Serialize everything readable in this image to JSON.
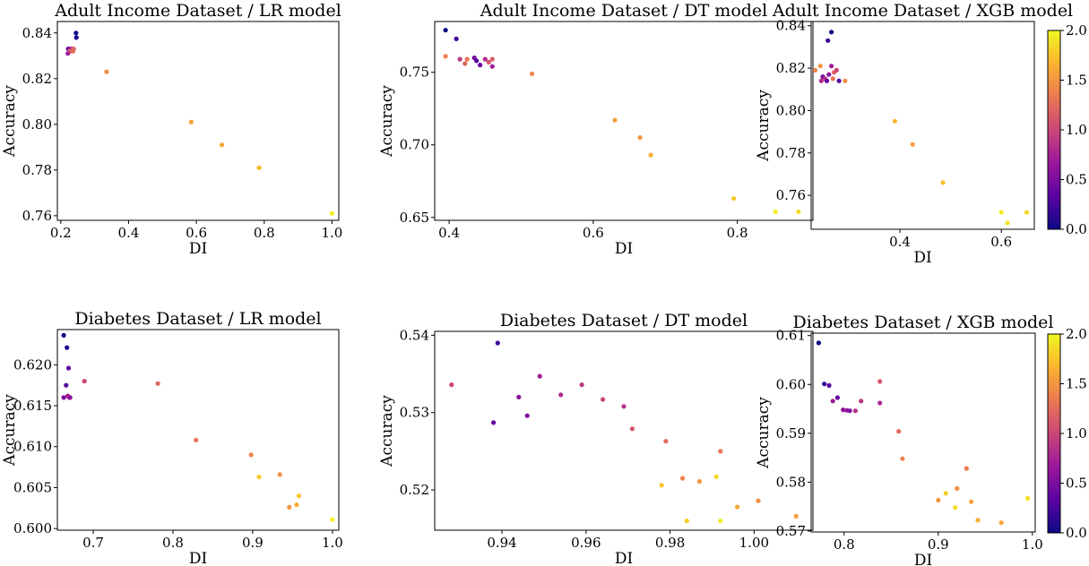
{
  "colormap": {
    "name": "plasma",
    "min": 0.0,
    "max": 2.0,
    "stops": [
      "#0d0887",
      "#5b02a3",
      "#9a179b",
      "#cb4678",
      "#eb7852",
      "#fbb32f",
      "#eff821"
    ],
    "tick_labels": [
      "0.0",
      "0.5",
      "1.0",
      "1.5",
      "2.0"
    ],
    "tick_values": [
      0.0,
      0.5,
      1.0,
      1.5,
      2.0
    ]
  },
  "chart_data": [
    {
      "type": "scatter",
      "title": "Adult Income Dataset / LR model",
      "xlabel": "DI",
      "ylabel": "Accuracy",
      "xlim": [
        0.19,
        1.02
      ],
      "ylim": [
        0.758,
        0.845
      ],
      "xticks": [
        0.2,
        0.4,
        0.6,
        0.8,
        1.0
      ],
      "xtick_labels": [
        "0.2",
        "0.4",
        "0.6",
        "0.8",
        "1.0"
      ],
      "yticks": [
        0.76,
        0.78,
        0.8,
        0.82,
        0.84
      ],
      "ytick_labels": [
        "0.76",
        "0.78",
        "0.80",
        "0.82",
        "0.84"
      ],
      "colorbar": false,
      "points": [
        {
          "x": 0.245,
          "y": 0.84,
          "c": 0.0
        },
        {
          "x": 0.246,
          "y": 0.838,
          "c": 0.05
        },
        {
          "x": 0.222,
          "y": 0.833,
          "c": 0.4
        },
        {
          "x": 0.228,
          "y": 0.833,
          "c": 0.6
        },
        {
          "x": 0.234,
          "y": 0.833,
          "c": 0.9
        },
        {
          "x": 0.238,
          "y": 0.833,
          "c": 1.2
        },
        {
          "x": 0.226,
          "y": 0.832,
          "c": 1.3
        },
        {
          "x": 0.232,
          "y": 0.832,
          "c": 1.1
        },
        {
          "x": 0.221,
          "y": 0.831,
          "c": 0.7
        },
        {
          "x": 0.236,
          "y": 0.832,
          "c": 1.25
        },
        {
          "x": 0.335,
          "y": 0.823,
          "c": 1.45
        },
        {
          "x": 0.585,
          "y": 0.801,
          "c": 1.55
        },
        {
          "x": 0.675,
          "y": 0.791,
          "c": 1.6
        },
        {
          "x": 0.785,
          "y": 0.781,
          "c": 1.7
        },
        {
          "x": 1.0,
          "y": 0.761,
          "c": 1.95
        }
      ]
    },
    {
      "type": "scatter",
      "title": "Adult Income Dataset / DT model",
      "xlabel": "DI",
      "ylabel": "Accuracy",
      "xlim": [
        0.38,
        0.905
      ],
      "ylim": [
        0.648,
        0.785
      ],
      "xticks": [
        0.4,
        0.6,
        0.8
      ],
      "xtick_labels": [
        "0.4",
        "0.6",
        "0.8"
      ],
      "yticks": [
        0.65,
        0.7,
        0.75
      ],
      "ytick_labels": [
        "0.65",
        "0.70",
        "0.75"
      ],
      "colorbar": false,
      "points": [
        {
          "x": 0.395,
          "y": 0.779,
          "c": 0.0
        },
        {
          "x": 0.41,
          "y": 0.773,
          "c": 0.2
        },
        {
          "x": 0.395,
          "y": 0.761,
          "c": 1.4
        },
        {
          "x": 0.415,
          "y": 0.759,
          "c": 0.9
        },
        {
          "x": 0.425,
          "y": 0.759,
          "c": 1.3
        },
        {
          "x": 0.422,
          "y": 0.756,
          "c": 1.2
        },
        {
          "x": 0.435,
          "y": 0.76,
          "c": 0.5
        },
        {
          "x": 0.438,
          "y": 0.758,
          "c": 0.3
        },
        {
          "x": 0.443,
          "y": 0.755,
          "c": 0.4
        },
        {
          "x": 0.45,
          "y": 0.759,
          "c": 0.8
        },
        {
          "x": 0.455,
          "y": 0.757,
          "c": 1.1
        },
        {
          "x": 0.46,
          "y": 0.759,
          "c": 1.15
        },
        {
          "x": 0.46,
          "y": 0.754,
          "c": 0.7
        },
        {
          "x": 0.515,
          "y": 0.749,
          "c": 1.4
        },
        {
          "x": 0.63,
          "y": 0.717,
          "c": 1.55
        },
        {
          "x": 0.665,
          "y": 0.705,
          "c": 1.5
        },
        {
          "x": 0.68,
          "y": 0.693,
          "c": 1.65
        },
        {
          "x": 0.795,
          "y": 0.663,
          "c": 1.75
        },
        {
          "x": 0.853,
          "y": 0.654,
          "c": 1.95
        },
        {
          "x": 0.885,
          "y": 0.654,
          "c": 1.85
        }
      ]
    },
    {
      "type": "scatter",
      "title": "Adult Income Dataset / XGB model",
      "xlabel": "DI",
      "ylabel": "Accuracy",
      "xlim": [
        0.225,
        0.665
      ],
      "ylim": [
        0.744,
        0.842
      ],
      "xticks": [
        0.4,
        0.6
      ],
      "xtick_labels": [
        "0.4",
        "0.6"
      ],
      "yticks": [
        0.76,
        0.78,
        0.8,
        0.82,
        0.84
      ],
      "ytick_labels": [
        "0.76",
        "0.78",
        "0.80",
        "0.82",
        "0.84"
      ],
      "colorbar": true,
      "points": [
        {
          "x": 0.265,
          "y": 0.837,
          "c": 0.0
        },
        {
          "x": 0.258,
          "y": 0.833,
          "c": 0.2
        },
        {
          "x": 0.233,
          "y": 0.819,
          "c": 1.4
        },
        {
          "x": 0.243,
          "y": 0.821,
          "c": 1.5
        },
        {
          "x": 0.265,
          "y": 0.821,
          "c": 0.7
        },
        {
          "x": 0.248,
          "y": 0.816,
          "c": 0.5
        },
        {
          "x": 0.253,
          "y": 0.815,
          "c": 0.9
        },
        {
          "x": 0.26,
          "y": 0.817,
          "c": 0.6
        },
        {
          "x": 0.27,
          "y": 0.818,
          "c": 1.2
        },
        {
          "x": 0.275,
          "y": 0.819,
          "c": 1.0
        },
        {
          "x": 0.268,
          "y": 0.815,
          "c": 1.3
        },
        {
          "x": 0.245,
          "y": 0.814,
          "c": 0.8
        },
        {
          "x": 0.256,
          "y": 0.814,
          "c": 0.4
        },
        {
          "x": 0.28,
          "y": 0.814,
          "c": 0.3
        },
        {
          "x": 0.292,
          "y": 0.814,
          "c": 1.45
        },
        {
          "x": 0.39,
          "y": 0.795,
          "c": 1.7
        },
        {
          "x": 0.425,
          "y": 0.784,
          "c": 1.55
        },
        {
          "x": 0.485,
          "y": 0.766,
          "c": 1.75
        },
        {
          "x": 0.6,
          "y": 0.752,
          "c": 1.95
        },
        {
          "x": 0.612,
          "y": 0.747,
          "c": 1.9
        },
        {
          "x": 0.65,
          "y": 0.752,
          "c": 1.85
        }
      ]
    },
    {
      "type": "scatter",
      "title": "Diabetes Dataset / LR model",
      "xlabel": "DI",
      "ylabel": "Accuracy",
      "xlim": [
        0.655,
        1.008
      ],
      "ylim": [
        0.5998,
        0.6243
      ],
      "xticks": [
        0.7,
        0.8,
        0.9,
        1.0
      ],
      "xtick_labels": [
        "0.7",
        "0.8",
        "0.9",
        "1.0"
      ],
      "yticks": [
        0.6,
        0.605,
        0.61,
        0.615,
        0.62
      ],
      "ytick_labels": [
        "0.600",
        "0.605",
        "0.610",
        "0.615",
        "0.620"
      ],
      "colorbar": false,
      "points": [
        {
          "x": 0.663,
          "y": 0.6236,
          "c": 0.0
        },
        {
          "x": 0.667,
          "y": 0.6221,
          "c": 0.1
        },
        {
          "x": 0.669,
          "y": 0.6196,
          "c": 0.4
        },
        {
          "x": 0.666,
          "y": 0.6175,
          "c": 0.3
        },
        {
          "x": 0.663,
          "y": 0.616,
          "c": 0.5
        },
        {
          "x": 0.668,
          "y": 0.6162,
          "c": 0.7
        },
        {
          "x": 0.67,
          "y": 0.616,
          "c": 0.8
        },
        {
          "x": 0.671,
          "y": 0.616,
          "c": 0.6
        },
        {
          "x": 0.689,
          "y": 0.618,
          "c": 1.0
        },
        {
          "x": 0.781,
          "y": 0.6177,
          "c": 1.2
        },
        {
          "x": 0.829,
          "y": 0.6108,
          "c": 1.3
        },
        {
          "x": 0.898,
          "y": 0.609,
          "c": 1.4
        },
        {
          "x": 0.908,
          "y": 0.6063,
          "c": 1.8
        },
        {
          "x": 0.934,
          "y": 0.6066,
          "c": 1.45
        },
        {
          "x": 0.946,
          "y": 0.6026,
          "c": 1.5
        },
        {
          "x": 0.955,
          "y": 0.6029,
          "c": 1.6
        },
        {
          "x": 0.958,
          "y": 0.604,
          "c": 1.75
        },
        {
          "x": 1.0,
          "y": 0.6011,
          "c": 1.95
        }
      ]
    },
    {
      "type": "scatter",
      "title": "Diabetes Dataset / DT model",
      "xlabel": "DI",
      "ylabel": "Accuracy",
      "xlim": [
        0.924,
        1.014
      ],
      "ylim": [
        0.5148,
        0.5405
      ],
      "xticks": [
        0.94,
        0.96,
        0.98,
        1.0
      ],
      "xtick_labels": [
        "0.94",
        "0.96",
        "0.98",
        "1.00"
      ],
      "yticks": [
        0.52,
        0.53,
        0.54
      ],
      "ytick_labels": [
        "0.52",
        "0.53",
        "0.54"
      ],
      "colorbar": false,
      "points": [
        {
          "x": 0.928,
          "y": 0.5336,
          "c": 1.0
        },
        {
          "x": 0.939,
          "y": 0.539,
          "c": 0.2
        },
        {
          "x": 0.938,
          "y": 0.5287,
          "c": 0.4
        },
        {
          "x": 0.944,
          "y": 0.532,
          "c": 0.6
        },
        {
          "x": 0.946,
          "y": 0.5296,
          "c": 0.5
        },
        {
          "x": 0.949,
          "y": 0.5347,
          "c": 0.7
        },
        {
          "x": 0.954,
          "y": 0.5323,
          "c": 0.8
        },
        {
          "x": 0.959,
          "y": 0.5336,
          "c": 0.9
        },
        {
          "x": 0.964,
          "y": 0.5317,
          "c": 1.0
        },
        {
          "x": 0.969,
          "y": 0.5308,
          "c": 0.85
        },
        {
          "x": 0.971,
          "y": 0.5279,
          "c": 1.1
        },
        {
          "x": 0.979,
          "y": 0.5263,
          "c": 1.25
        },
        {
          "x": 0.978,
          "y": 0.5206,
          "c": 1.75
        },
        {
          "x": 0.983,
          "y": 0.5215,
          "c": 1.4
        },
        {
          "x": 0.984,
          "y": 0.516,
          "c": 1.8
        },
        {
          "x": 0.987,
          "y": 0.5211,
          "c": 1.5
        },
        {
          "x": 0.991,
          "y": 0.5217,
          "c": 1.85
        },
        {
          "x": 0.992,
          "y": 0.525,
          "c": 1.3
        },
        {
          "x": 0.992,
          "y": 0.516,
          "c": 1.95
        },
        {
          "x": 0.996,
          "y": 0.5178,
          "c": 1.6
        },
        {
          "x": 1.001,
          "y": 0.5186,
          "c": 1.45
        },
        {
          "x": 1.01,
          "y": 0.5166,
          "c": 1.55
        }
      ]
    },
    {
      "type": "scatter",
      "title": "Diabetes Dataset / XGB model",
      "xlabel": "DI",
      "ylabel": "Accuracy",
      "xlim": [
        0.765,
        1.003
      ],
      "ylim": [
        0.5698,
        0.6105
      ],
      "xticks": [
        0.8,
        0.9,
        1.0
      ],
      "xtick_labels": [
        "0.8",
        "0.9",
        "1.0"
      ],
      "yticks": [
        0.57,
        0.58,
        0.59,
        0.6,
        0.61
      ],
      "ytick_labels": [
        "0.57",
        "0.58",
        "0.59",
        "0.60",
        "0.61"
      ],
      "colorbar": true,
      "points": [
        {
          "x": 0.773,
          "y": 0.6085,
          "c": 0.0
        },
        {
          "x": 0.779,
          "y": 0.6001,
          "c": 0.2
        },
        {
          "x": 0.784,
          "y": 0.5998,
          "c": 0.3
        },
        {
          "x": 0.788,
          "y": 0.5966,
          "c": 0.7
        },
        {
          "x": 0.793,
          "y": 0.5973,
          "c": 0.4
        },
        {
          "x": 0.799,
          "y": 0.5948,
          "c": 0.6
        },
        {
          "x": 0.803,
          "y": 0.5947,
          "c": 0.65
        },
        {
          "x": 0.806,
          "y": 0.5946,
          "c": 0.5
        },
        {
          "x": 0.812,
          "y": 0.5946,
          "c": 0.85
        },
        {
          "x": 0.818,
          "y": 0.5966,
          "c": 0.9
        },
        {
          "x": 0.838,
          "y": 0.6006,
          "c": 1.1
        },
        {
          "x": 0.838,
          "y": 0.5962,
          "c": 0.8
        },
        {
          "x": 0.858,
          "y": 0.5904,
          "c": 1.25
        },
        {
          "x": 0.862,
          "y": 0.5848,
          "c": 1.4
        },
        {
          "x": 0.9,
          "y": 0.5763,
          "c": 1.5
        },
        {
          "x": 0.908,
          "y": 0.5777,
          "c": 1.8
        },
        {
          "x": 0.918,
          "y": 0.5748,
          "c": 1.85
        },
        {
          "x": 0.92,
          "y": 0.5787,
          "c": 1.45
        },
        {
          "x": 0.93,
          "y": 0.5828,
          "c": 1.35
        },
        {
          "x": 0.935,
          "y": 0.576,
          "c": 1.55
        },
        {
          "x": 0.942,
          "y": 0.5722,
          "c": 1.65
        },
        {
          "x": 0.967,
          "y": 0.5717,
          "c": 1.6
        },
        {
          "x": 0.995,
          "y": 0.5767,
          "c": 1.9
        }
      ]
    }
  ]
}
